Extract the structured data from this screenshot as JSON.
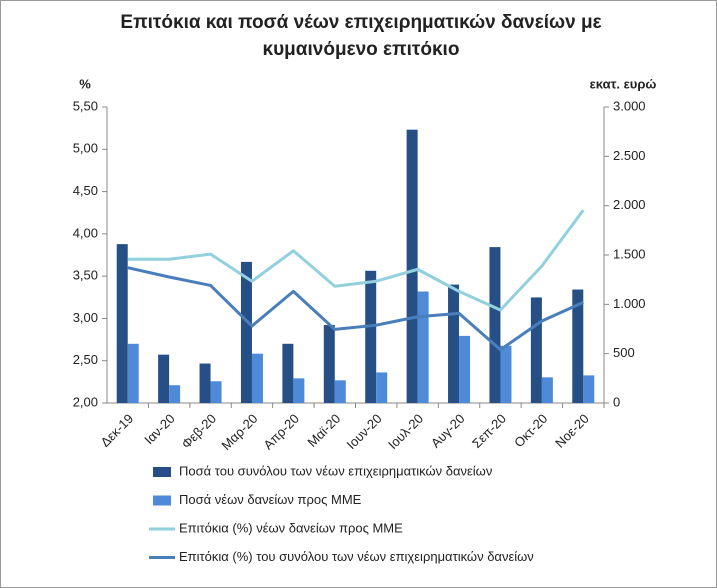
{
  "chart_data": {
    "type": "bar",
    "title": "Επιτόκια και ποσά νέων επιχειρηματικών δανείων με κυμαινόμενο επιτόκιο",
    "y_label": "%",
    "y2_label": "εκατ. ευρώ",
    "categories": [
      "Δεκ-19",
      "Ιαν-20",
      "Φεβ-20",
      "Μαρ-20",
      "Απρ-20",
      "Μαϊ-20",
      "Ιουν-20",
      "Ιουλ-20",
      "Αυγ-20",
      "Σεπ-20",
      "Οκτ-20",
      "Νοε-20"
    ],
    "ylim": [
      2,
      5.5
    ],
    "yticks": [
      {
        "value": 2,
        "label": "2,00"
      },
      {
        "value": 2.5,
        "label": "2,50"
      },
      {
        "value": 3,
        "label": "3,00"
      },
      {
        "value": 3.5,
        "label": "3,50"
      },
      {
        "value": 4,
        "label": "4,00"
      },
      {
        "value": 4.5,
        "label": "4,50"
      },
      {
        "value": 5,
        "label": "5,00"
      },
      {
        "value": 5.5,
        "label": "5,50"
      }
    ],
    "y2lim": [
      0,
      3000
    ],
    "y2ticks": [
      0,
      500,
      {
        "value": 1000,
        "label": "1.000"
      },
      {
        "value": 1500,
        "label": "1.500"
      },
      {
        "value": 2000,
        "label": "2.000"
      },
      {
        "value": 2500,
        "label": "2.500"
      },
      {
        "value": 3000,
        "label": "3.000"
      }
    ],
    "series": [
      {
        "name": "Ποσά του συνόλου των νέων επιχειρηματικών δανείων",
        "type": "bar",
        "axis": "y2",
        "color": "#254f85",
        "values": [
          1610,
          490,
          400,
          1430,
          600,
          790,
          1340,
          2770,
          1200,
          1580,
          1070,
          1150
        ]
      },
      {
        "name": "Ποσά νέων δανείων προς ΜΜΕ",
        "type": "bar",
        "axis": "y2",
        "color": "#4f8ad8",
        "values": [
          600,
          180,
          220,
          500,
          250,
          230,
          310,
          1130,
          680,
          580,
          260,
          280
        ]
      },
      {
        "name": "Επιτόκια (%) νέων δανείων προς ΜΜΕ",
        "type": "line",
        "color": "#93d0de",
        "values": [
          3.7,
          3.7,
          3.76,
          3.44,
          3.8,
          3.38,
          3.44,
          3.58,
          3.32,
          3.1,
          3.62,
          4.28
        ]
      },
      {
        "name": "Επιτόκια (%) του συνόλου των νέων επιχειρηματικών δανείων",
        "type": "line",
        "color": "#4a7ebb",
        "values": [
          3.6,
          3.49,
          3.39,
          2.91,
          3.32,
          2.87,
          2.92,
          3.02,
          3.06,
          2.63,
          2.97,
          3.19
        ]
      }
    ]
  }
}
